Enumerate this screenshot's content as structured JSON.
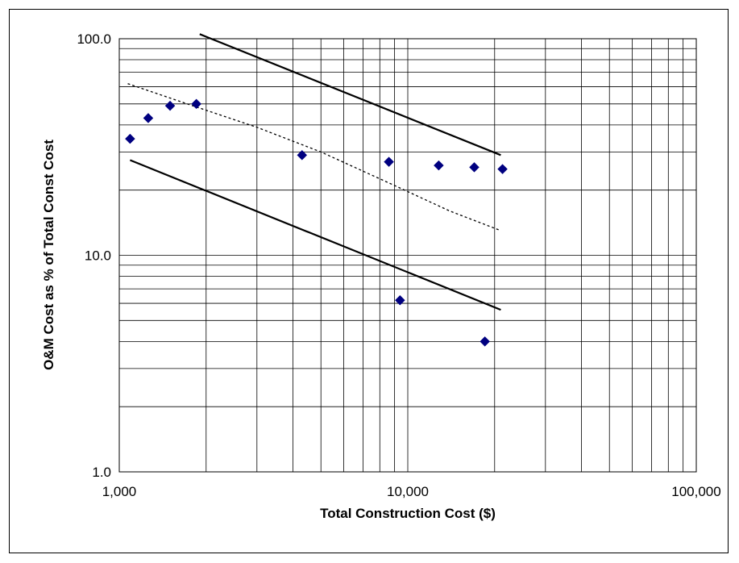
{
  "chart_data": {
    "type": "scatter",
    "xlabel": "Total Construction Cost ($)",
    "ylabel": "O&M Cost as % of Total Const Cost",
    "x_scale": "log",
    "y_scale": "log",
    "xlim": [
      1000,
      100000
    ],
    "ylim": [
      1,
      100
    ],
    "x_ticks": [
      1000,
      10000,
      100000
    ],
    "x_tick_labels": [
      "1,000",
      "10,000",
      "100,000"
    ],
    "y_ticks": [
      1,
      10,
      100
    ],
    "y_tick_labels": [
      "1.0",
      "10.0",
      "100.0"
    ],
    "grid": true,
    "legend": "none",
    "colors": {
      "points": "#000080",
      "lines": "#000000",
      "grid": "#000000"
    },
    "series": [
      {
        "kind": "points",
        "marker": "diamond",
        "x": [
          1090,
          1260,
          1500,
          1850,
          4300,
          8600,
          9400,
          12800,
          17000,
          18500,
          21300
        ],
        "y": [
          34.5,
          43,
          49,
          50,
          29,
          27,
          6.2,
          26,
          25.5,
          4.0,
          25
        ]
      },
      {
        "kind": "line",
        "style": "dotted",
        "x": [
          1070,
          1800,
          3000,
          5000,
          9000,
          14000,
          21000
        ],
        "y": [
          62,
          49,
          39,
          30,
          21,
          16,
          13
        ]
      },
      {
        "kind": "line",
        "style": "solid",
        "x": [
          1900,
          21000
        ],
        "y": [
          105,
          29
        ]
      },
      {
        "kind": "line",
        "style": "solid",
        "x": [
          1090,
          21000
        ],
        "y": [
          27.5,
          5.6
        ]
      }
    ]
  }
}
